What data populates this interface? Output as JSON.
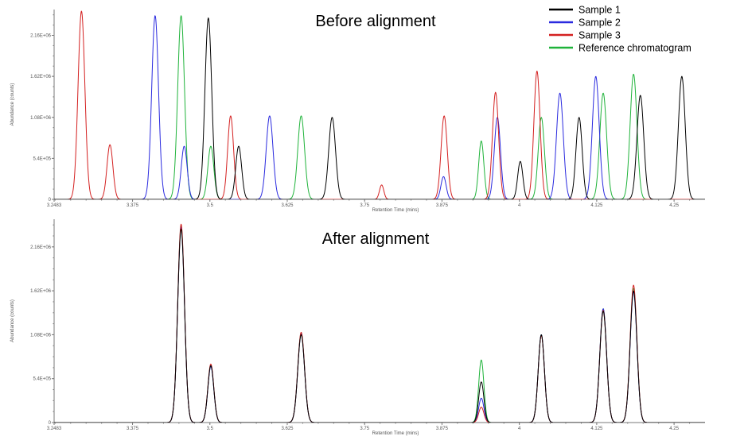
{
  "legend": [
    {
      "name": "Sample  1",
      "color": "#000000"
    },
    {
      "name": "Sample  2",
      "color": "#2a2adf"
    },
    {
      "name": "Sample  3",
      "color": "#d42020"
    },
    {
      "name": "Reference chromatogram",
      "color": "#1fb33a"
    }
  ],
  "chart_data": [
    {
      "type": "line",
      "title": "Before alignment",
      "xlabel": "Retention Time (mins)",
      "ylabel": "Abundance (counts)",
      "xlim": [
        3.2483,
        4.3
      ],
      "ylim": [
        0,
        2500000
      ],
      "x_ticks": [
        3.2483,
        3.375,
        3.5,
        3.625,
        3.75,
        3.875,
        4,
        4.125,
        4.25
      ],
      "x_tick_labels": [
        "3.2483",
        "3.375",
        "3.5",
        "3.625",
        "3.75",
        "3.875",
        "4",
        "4.125",
        "4.25"
      ],
      "y_ticks": [
        0,
        540000,
        1080000,
        1620000,
        2160000
      ],
      "y_tick_labels": [
        "0",
        "5.4E+05",
        "1.08E+06",
        "1.62E+06",
        "2.16E+06"
      ],
      "grid": false,
      "legend_position": "top-right",
      "series": [
        {
          "name": "Reference chromatogram",
          "color": "#1fb33a",
          "peaks": [
            [
              3.4535,
              2420000,
              0.0055
            ],
            [
              3.5015,
              700000,
              0.0048
            ],
            [
              3.6475,
              1100000,
              0.0055
            ],
            [
              3.9385,
              770000,
              0.0042
            ],
            [
              4.0355,
              1080000,
              0.005
            ],
            [
              4.1355,
              1400000,
              0.0055
            ],
            [
              4.1845,
              1650000,
              0.0055
            ]
          ]
        },
        {
          "name": "Sample  2",
          "color": "#2a2adf",
          "peaks": [
            [
              3.4115,
              2420000,
              0.0055
            ],
            [
              3.4585,
              700000,
              0.0048
            ],
            [
              3.5965,
              1100000,
              0.0055
            ],
            [
              3.8775,
              300000,
              0.0042
            ],
            [
              3.9645,
              1080000,
              0.005
            ],
            [
              4.0655,
              1400000,
              0.0055
            ],
            [
              4.1235,
              1620000,
              0.0055
            ]
          ]
        },
        {
          "name": "Sample  3",
          "color": "#d42020",
          "peaks": [
            [
              3.2925,
              2480000,
              0.0055
            ],
            [
              3.3385,
              720000,
              0.0048
            ],
            [
              3.5335,
              1100000,
              0.0048
            ],
            [
              3.7775,
              190000,
              0.0035
            ],
            [
              3.8785,
              1100000,
              0.005
            ],
            [
              3.9615,
              1410000,
              0.005
            ],
            [
              4.0285,
              1690000,
              0.005
            ]
          ]
        },
        {
          "name": "Sample  1",
          "color": "#000000",
          "peaks": [
            [
              3.4975,
              2390000,
              0.0055
            ],
            [
              3.5465,
              700000,
              0.0048
            ],
            [
              3.6975,
              1080000,
              0.0055
            ],
            [
              4.0015,
              500000,
              0.0042
            ],
            [
              4.0965,
              1080000,
              0.005
            ],
            [
              4.1955,
              1370000,
              0.0055
            ],
            [
              4.2625,
              1620000,
              0.0055
            ]
          ]
        }
      ]
    },
    {
      "type": "line",
      "title": "After alignment",
      "xlabel": "Retention Time (mins)",
      "ylabel": "Abundance (counts)",
      "xlim": [
        3.2483,
        4.3
      ],
      "ylim": [
        0,
        2500000
      ],
      "x_ticks": [
        3.2483,
        3.375,
        3.5,
        3.625,
        3.75,
        3.875,
        4,
        4.125,
        4.25
      ],
      "x_tick_labels": [
        "3.2483",
        "3.375",
        "3.5",
        "3.625",
        "3.75",
        "3.875",
        "4",
        "4.125",
        "4.25"
      ],
      "y_ticks": [
        0,
        540000,
        1080000,
        1620000,
        2160000
      ],
      "y_tick_labels": [
        "0",
        "5.4E+05",
        "1.08E+06",
        "1.62E+06",
        "2.16E+06"
      ],
      "grid": false,
      "series": [
        {
          "name": "Reference chromatogram",
          "color": "#1fb33a",
          "peaks": [
            [
              3.4535,
              2420000,
              0.0055
            ],
            [
              3.5015,
              700000,
              0.0048
            ],
            [
              3.6475,
              1100000,
              0.0055
            ],
            [
              3.9385,
              770000,
              0.0042
            ],
            [
              4.0355,
              1080000,
              0.005
            ],
            [
              4.1355,
              1400000,
              0.0055
            ],
            [
              4.1845,
              1650000,
              0.0055
            ]
          ]
        },
        {
          "name": "Sample  2",
          "color": "#2a2adf",
          "peaks": [
            [
              3.4535,
              2400000,
              0.0055
            ],
            [
              3.5015,
              690000,
              0.0048
            ],
            [
              3.6475,
              1090000,
              0.0055
            ],
            [
              3.9385,
              300000,
              0.0042
            ],
            [
              4.0355,
              1080000,
              0.005
            ],
            [
              4.1355,
              1400000,
              0.0055
            ],
            [
              4.1845,
              1610000,
              0.0055
            ]
          ]
        },
        {
          "name": "Sample  3",
          "color": "#d42020",
          "peaks": [
            [
              3.4535,
              2440000,
              0.0055
            ],
            [
              3.5015,
              720000,
              0.0048
            ],
            [
              3.6475,
              1110000,
              0.0055
            ],
            [
              3.9385,
              190000,
              0.0042
            ],
            [
              4.0355,
              1070000,
              0.005
            ],
            [
              4.1355,
              1380000,
              0.0055
            ],
            [
              4.1845,
              1690000,
              0.0055
            ]
          ]
        },
        {
          "name": "Sample  1",
          "color": "#000000",
          "peaks": [
            [
              3.4535,
              2380000,
              0.0055
            ],
            [
              3.5015,
              700000,
              0.0048
            ],
            [
              3.6475,
              1080000,
              0.0055
            ],
            [
              3.9385,
              500000,
              0.0042
            ],
            [
              4.0355,
              1080000,
              0.005
            ],
            [
              4.1355,
              1370000,
              0.0055
            ],
            [
              4.1845,
              1620000,
              0.0055
            ]
          ]
        }
      ]
    }
  ]
}
